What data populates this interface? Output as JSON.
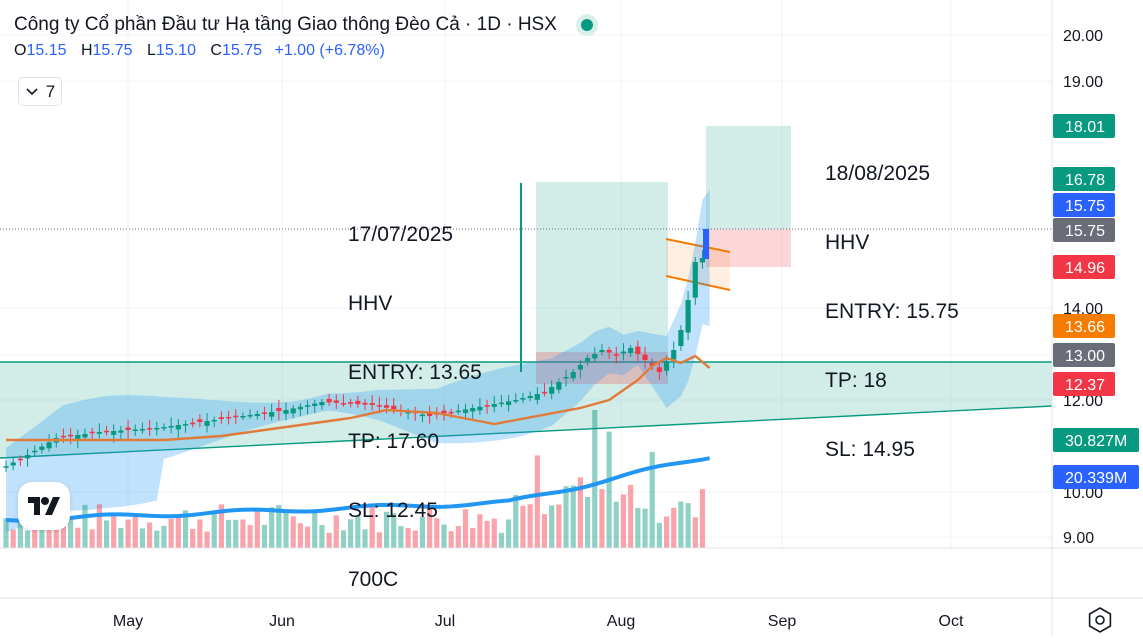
{
  "header": {
    "title": "Công ty Cổ phần Đầu tư Hạ tầng Giao thông Đèo Cả · 1D · HSX",
    "ohlc": {
      "o_label": "O",
      "o_value": "15.15",
      "h_label": "H",
      "h_value": "15.75",
      "l_label": "L",
      "l_value": "15.10",
      "c_label": "C",
      "c_value": "15.75",
      "change": "+1.00 (+6.78%)"
    },
    "indicator_count": "7",
    "collapse_icon": "chevron-down-icon",
    "status_icon": "green-dot-icon",
    "logo_icon": "tradingview-logo-icon",
    "settings_icon": "settings-icon"
  },
  "notes": {
    "trade1": [
      "17/07/2025",
      "HHV",
      "ENTRY: 13.65",
      "TP: 17.60",
      "SL: 12.45",
      "700C"
    ],
    "trade2": [
      "18/08/2025",
      "HHV",
      "ENTRY: 15.75",
      "TP: 18",
      "SL: 14.95"
    ]
  },
  "chart_data": {
    "type": "candlestick",
    "symbol": "HHV",
    "timeframe": "1D",
    "exchange": "HSX",
    "x_labels": [
      "May",
      "Jun",
      "Jul",
      "Aug",
      "Sep",
      "Oct"
    ],
    "y_ticks": [
      "20.00",
      "19.00",
      "14.00",
      "13.00",
      "12.00",
      "10.00",
      "9.00"
    ],
    "price_labels": [
      {
        "value": "18.01",
        "color": "#089981"
      },
      {
        "value": "16.78",
        "color": "#089981"
      },
      {
        "value": "15.75",
        "color": "#2962ff"
      },
      {
        "value": "15.75",
        "color": "#6a6d78"
      },
      {
        "value": "14.96",
        "color": "#f23645"
      },
      {
        "value": "13.66",
        "color": "#f57c00"
      },
      {
        "value": "13.00",
        "color": "#6a6d78"
      },
      {
        "value": "12.37",
        "color": "#f23645"
      },
      {
        "value": "30.827M",
        "color": "#089981"
      },
      {
        "value": "20.339M",
        "color": "#2962ff"
      }
    ],
    "last_close": 15.75,
    "trades": [
      {
        "date": "17/07/2025",
        "entry": 13.65,
        "tp": 17.6,
        "sl": 12.45
      },
      {
        "date": "18/08/2025",
        "entry": 15.75,
        "tp": 18,
        "sl": 14.95
      }
    ],
    "colors": {
      "up": "#089981",
      "down": "#f23645",
      "ma": "#e07b39",
      "volume_ma": "#2196f3"
    },
    "grid": true
  }
}
